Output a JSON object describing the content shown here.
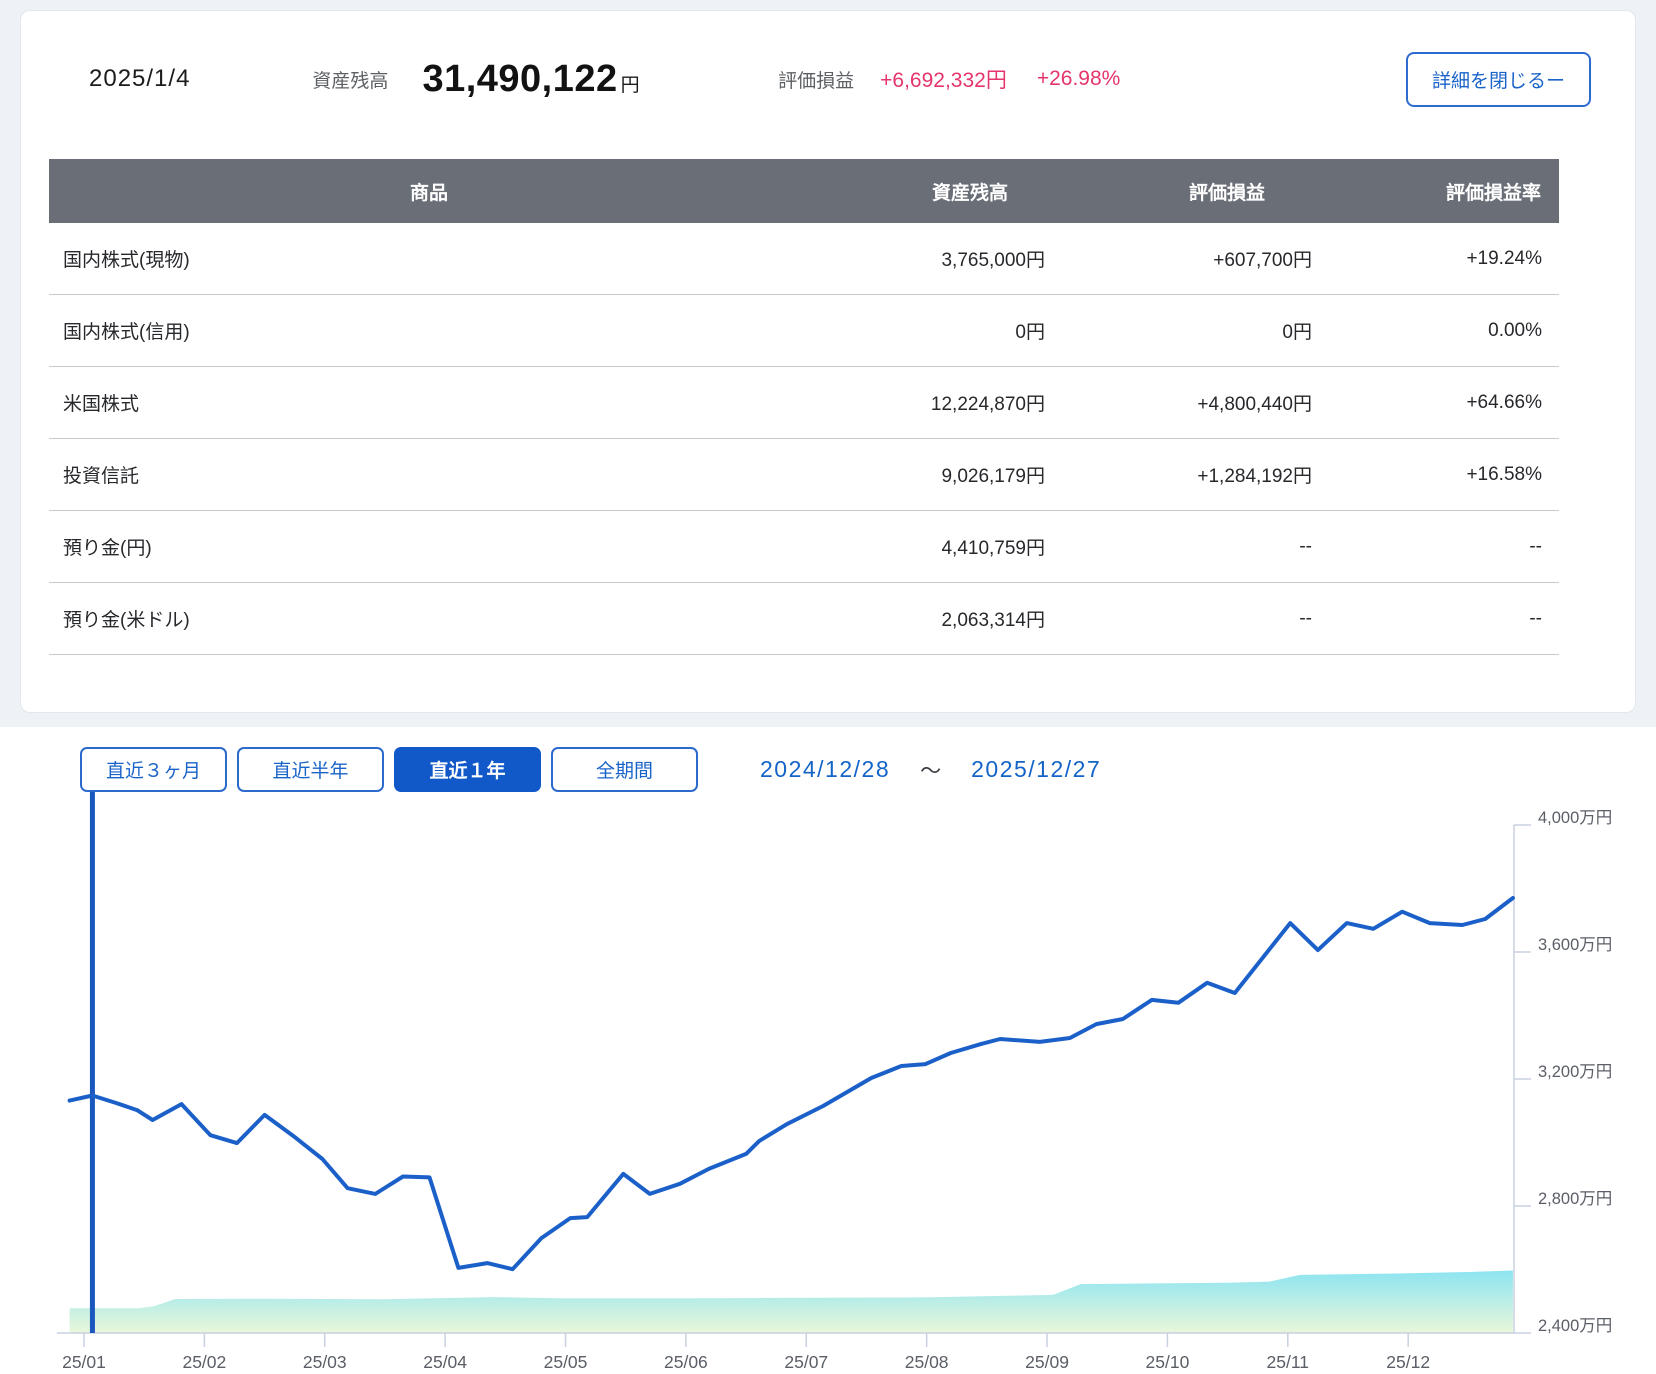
{
  "summary": {
    "date": "2025/1/4",
    "balance_label": "資産残高",
    "balance_value": "31,490,122",
    "balance_unit": "円",
    "pl_label": "評価損益",
    "pl_amount": "+6,692,332円",
    "pl_rate": "+26.98%",
    "close_details_button": "詳細を閉じるー"
  },
  "table": {
    "columns": [
      "商品",
      "資産残高",
      "評価損益",
      "評価損益率"
    ],
    "rows": [
      {
        "product": "国内株式(現物)",
        "balance": "3,765,000円",
        "pl": "+607,700円",
        "pl_rate": "+19.24%"
      },
      {
        "product": "国内株式(信用)",
        "balance": "0円",
        "pl": "0円",
        "pl_rate": "0.00%"
      },
      {
        "product": "米国株式",
        "balance": "12,224,870円",
        "pl": "+4,800,440円",
        "pl_rate": "+64.66%"
      },
      {
        "product": "投資信託",
        "balance": "9,026,179円",
        "pl": "+1,284,192円",
        "pl_rate": "+16.58%"
      },
      {
        "product": "預り金(円)",
        "balance": "4,410,759円",
        "pl": "--",
        "pl_rate": "--"
      },
      {
        "product": "預り金(米ドル)",
        "balance": "2,063,314円",
        "pl": "--",
        "pl_rate": "--"
      }
    ]
  },
  "range_controls": {
    "buttons": [
      {
        "label": "直近３ヶ月",
        "selected": false
      },
      {
        "label": "直近半年",
        "selected": false
      },
      {
        "label": "直近１年",
        "selected": true
      },
      {
        "label": "全期間",
        "selected": false
      }
    ],
    "start_date": "2024/12/28",
    "separator": "～",
    "end_date": "2025/12/27"
  },
  "chart_data": {
    "type": "line+area",
    "title": "",
    "x_unit": "months offset from 25/01 tick",
    "y_unit": "万円",
    "ylim": [
      2400,
      4000
    ],
    "x_ticks": {
      "labels": [
        "25/01",
        "25/02",
        "25/03",
        "25/04",
        "25/05",
        "25/06",
        "25/07",
        "25/08",
        "25/09",
        "25/10",
        "25/11",
        "25/12"
      ],
      "values": [
        0,
        1,
        2,
        3,
        4,
        5,
        6,
        7,
        8,
        9,
        10,
        11
      ]
    },
    "y_ticks": {
      "labels": [
        "2,400万円",
        "2,800万円",
        "3,200万円",
        "3,600万円",
        "4,000万円"
      ],
      "values": [
        2400,
        2800,
        3200,
        3600,
        4000
      ]
    },
    "marker_x": 0.07,
    "line_series": [
      [
        -0.12,
        3132
      ],
      [
        0.07,
        3148
      ],
      [
        0.27,
        3124
      ],
      [
        0.44,
        3102
      ],
      [
        0.57,
        3071
      ],
      [
        0.81,
        3121
      ],
      [
        1.05,
        3023
      ],
      [
        1.27,
        2998
      ],
      [
        1.5,
        3087
      ],
      [
        1.74,
        3020
      ],
      [
        1.98,
        2948
      ],
      [
        2.19,
        2856
      ],
      [
        2.42,
        2838
      ],
      [
        2.65,
        2893
      ],
      [
        2.87,
        2890
      ],
      [
        3.11,
        2605
      ],
      [
        3.35,
        2620
      ],
      [
        3.56,
        2601
      ],
      [
        3.8,
        2699
      ],
      [
        4.04,
        2762
      ],
      [
        4.18,
        2765
      ],
      [
        4.48,
        2901
      ],
      [
        4.7,
        2838
      ],
      [
        4.95,
        2870
      ],
      [
        5.19,
        2917
      ],
      [
        5.5,
        2964
      ],
      [
        5.61,
        3005
      ],
      [
        5.84,
        3058
      ],
      [
        6.14,
        3115
      ],
      [
        6.54,
        3203
      ],
      [
        6.79,
        3241
      ],
      [
        6.99,
        3247
      ],
      [
        7.2,
        3282
      ],
      [
        7.45,
        3310
      ],
      [
        7.61,
        3326
      ],
      [
        7.94,
        3317
      ],
      [
        8.19,
        3329
      ],
      [
        8.41,
        3373
      ],
      [
        8.63,
        3389
      ],
      [
        8.87,
        3449
      ],
      [
        9.09,
        3440
      ],
      [
        9.33,
        3503
      ],
      [
        9.56,
        3471
      ],
      [
        10.02,
        3691
      ],
      [
        10.25,
        3606
      ],
      [
        10.49,
        3691
      ],
      [
        10.71,
        3673
      ],
      [
        10.95,
        3727
      ],
      [
        11.18,
        3691
      ],
      [
        11.45,
        3685
      ],
      [
        11.64,
        3704
      ],
      [
        11.87,
        3770
      ]
    ],
    "area_series": [
      [
        -0.12,
        2478
      ],
      [
        0.45,
        2478
      ],
      [
        0.58,
        2484
      ],
      [
        0.76,
        2507
      ],
      [
        1.5,
        2508
      ],
      [
        2.5,
        2506
      ],
      [
        3.4,
        2513
      ],
      [
        4.0,
        2509
      ],
      [
        5.0,
        2509
      ],
      [
        6.0,
        2511
      ],
      [
        7.0,
        2512
      ],
      [
        7.61,
        2517
      ],
      [
        8.05,
        2520
      ],
      [
        8.28,
        2554
      ],
      [
        9.5,
        2558
      ],
      [
        9.85,
        2562
      ],
      [
        10.1,
        2583
      ],
      [
        11.0,
        2588
      ],
      [
        11.5,
        2592
      ],
      [
        11.87,
        2597
      ]
    ],
    "colors": {
      "line": "#1b60c9",
      "marker": "#1a57be",
      "area_top": "#8ce4f1",
      "area_bottom": "#e9f7da",
      "axis": "#c8d1e0",
      "axis_label": "#5a5e66",
      "accent_pink": "#e5356b",
      "accent_blue": "#1a63c9"
    }
  }
}
